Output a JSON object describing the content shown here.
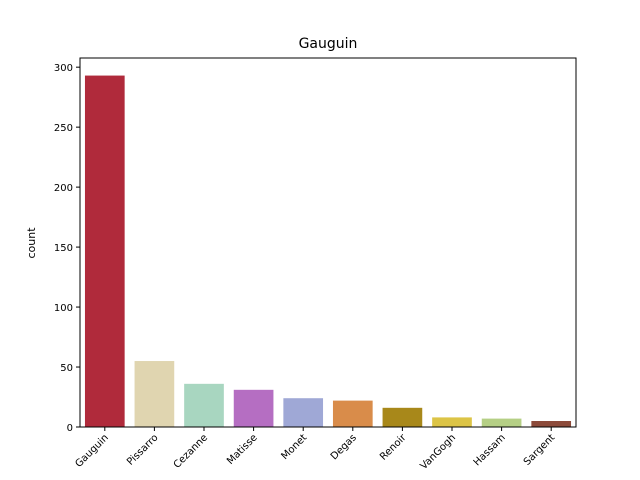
{
  "chart_data": {
    "type": "bar",
    "title": "Gauguin",
    "xlabel": "",
    "ylabel": "count",
    "categories": [
      "Gauguin",
      "Pissarro",
      "Cezanne",
      "Matisse",
      "Monet",
      "Degas",
      "Renoir",
      "VanGogh",
      "Hassam",
      "Sargent"
    ],
    "values": [
      293,
      55,
      36,
      31,
      24,
      22,
      16,
      8,
      7,
      5
    ],
    "colors": [
      "#b02a3b",
      "#e0d5b0",
      "#a8d6c0",
      "#b56ec2",
      "#9fa8d6",
      "#d98c4a",
      "#a8881a",
      "#dcc446",
      "#b5cf85",
      "#8c4a3a"
    ],
    "ylim": [
      0,
      307.65
    ],
    "yticks": [
      0,
      50,
      100,
      150,
      200,
      250,
      300
    ],
    "grid": false,
    "legend": "none"
  }
}
